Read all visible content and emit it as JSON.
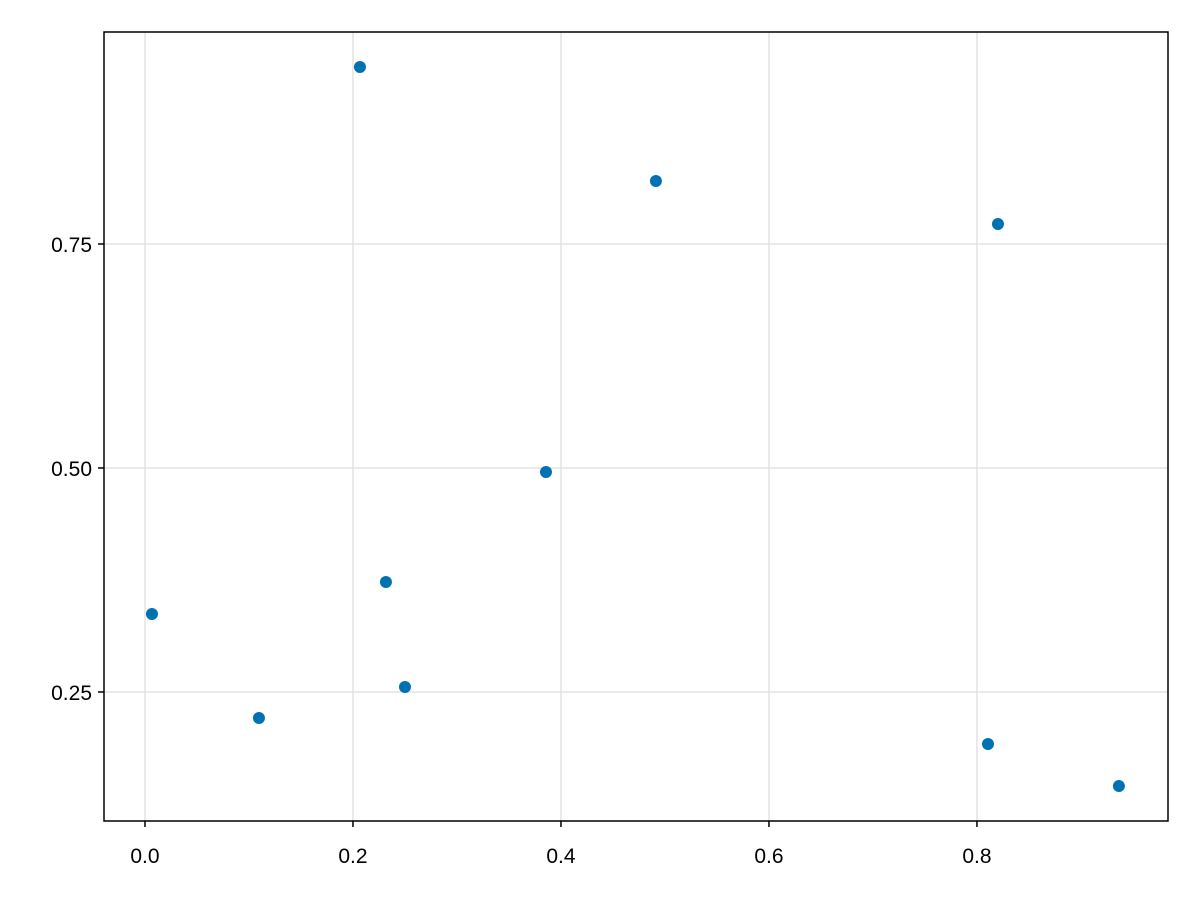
{
  "chart_data": {
    "type": "scatter",
    "series": [
      {
        "color": "#0072b2",
        "x": [
          0.2067,
          0.4913,
          0.8202,
          0.3856,
          0.2317,
          0.0067,
          0.25,
          0.1096,
          0.8106,
          0.9365
        ],
        "values": [
          0.9475,
          0.8203,
          0.7723,
          0.4955,
          0.3728,
          0.337,
          0.2556,
          0.221,
          0.192,
          0.145
        ]
      }
    ],
    "xlim": [
      -0.0394,
      0.9837
    ],
    "ylim": [
      0.106,
      0.9866
    ],
    "xticks": [
      {
        "value": 0,
        "label": "0.0"
      },
      0.2,
      0.4,
      0.6,
      0.8
    ],
    "yticks": [
      0.25,
      {
        "value": 0.5,
        "label": "0.50"
      },
      0.75
    ],
    "grid": true
  }
}
